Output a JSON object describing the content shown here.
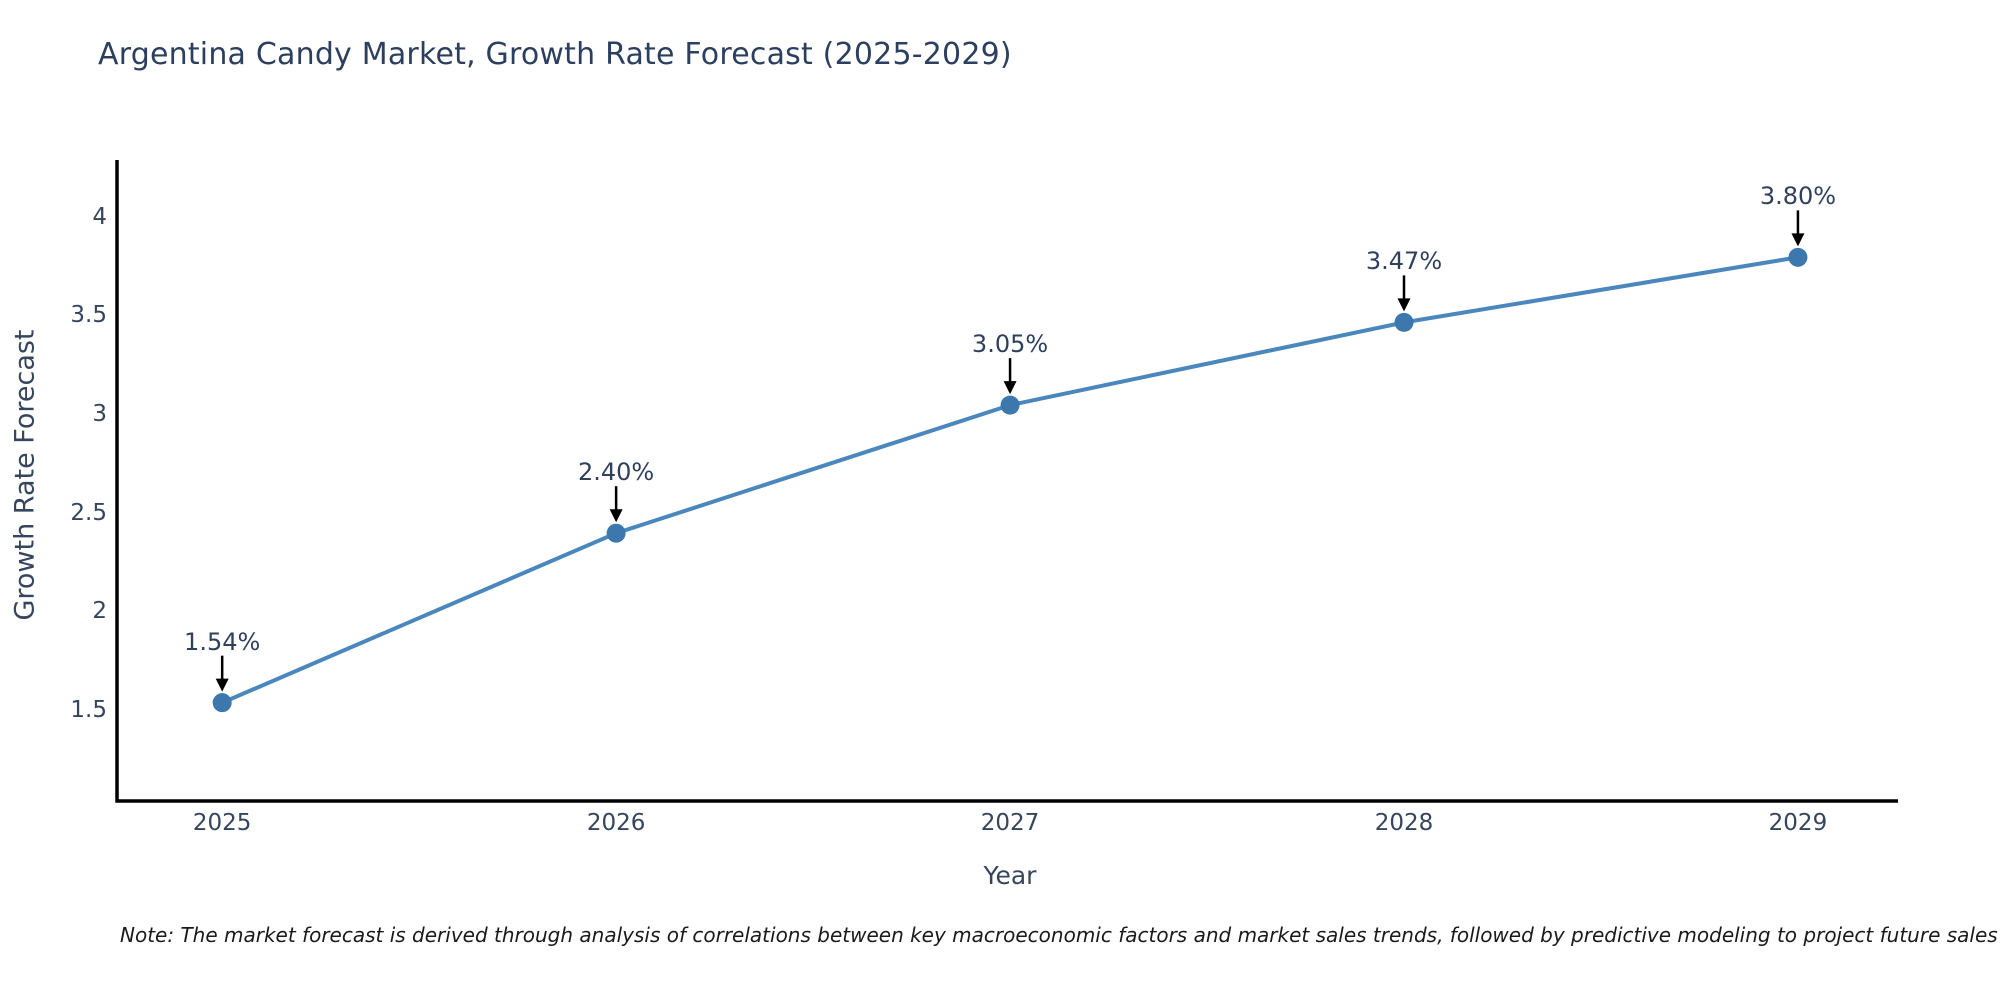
{
  "page": {
    "title": "Argentina Candy Market, Growth Rate Forecast (2025-2029)",
    "note": "Note: The market forecast is derived through analysis of correlations between key macroeconomic factors and market sales trends, followed by predictive modeling to project future sales"
  },
  "chart_data": {
    "type": "line",
    "title": "Argentina Candy Market, Growth Rate Forecast (2025-2029)",
    "xlabel": "Year",
    "ylabel": "Growth Rate Forecast",
    "x": [
      2025,
      2026,
      2027,
      2028,
      2029
    ],
    "x_tick_labels": [
      "2025",
      "2026",
      "2027",
      "2028",
      "2029"
    ],
    "series": [
      {
        "name": "Growth Rate Forecast",
        "values": [
          1.54,
          2.4,
          3.05,
          3.47,
          3.8
        ]
      }
    ],
    "point_labels": [
      "1.54%",
      "2.40%",
      "3.05%",
      "3.47%",
      "3.80%"
    ],
    "y_ticks": [
      1.5,
      2,
      2.5,
      3,
      3.5,
      4
    ],
    "y_tick_labels": [
      "1.5",
      "2",
      "2.5",
      "3",
      "3.5",
      "4"
    ],
    "xlim": [
      2024.733,
      2029.254
    ],
    "ylim": [
      1.041,
      4.294
    ],
    "grid": false,
    "legend": "none",
    "annotation_style": "percentage labels with black down-arrows above each marker",
    "colors": {
      "line": "#4a87bd",
      "marker": "#3c77ae",
      "arrow": "#000000",
      "axis": "#000000",
      "title_text": "#2c3f5e",
      "tick_text": "#36455e",
      "label_text": "#2f3f5c",
      "note_text": "#1a1a1a",
      "background": "#ffffff"
    }
  }
}
